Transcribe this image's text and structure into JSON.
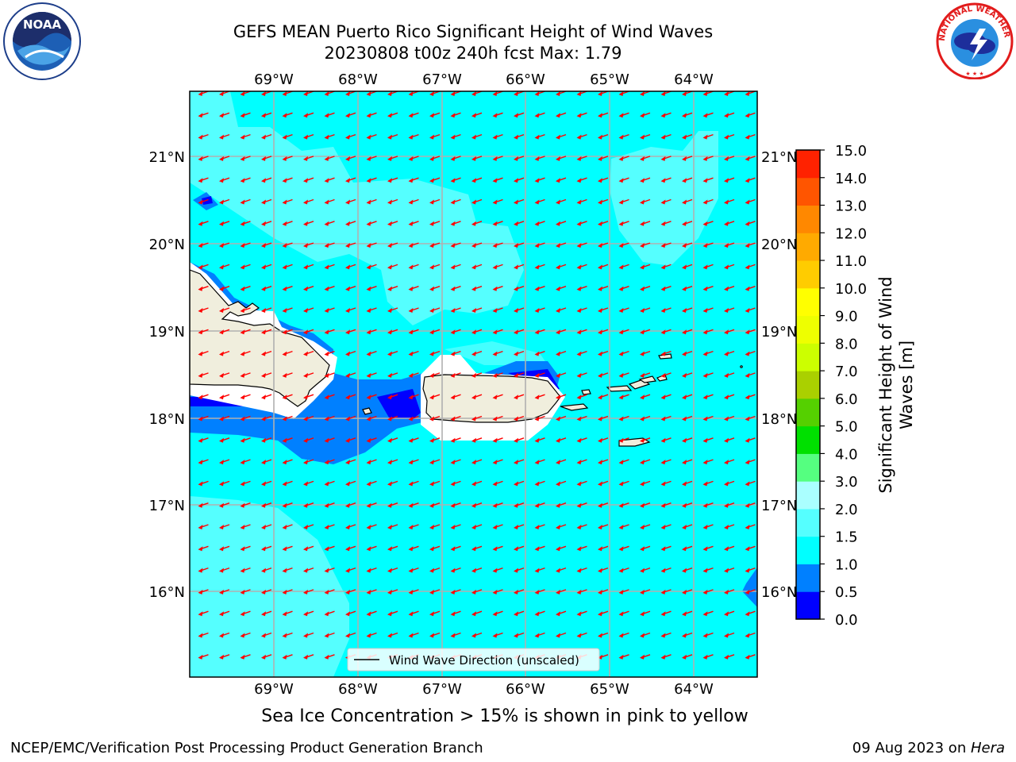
{
  "title_line1": "GEFS MEAN Puerto Rico Significant Height of Wind Waves",
  "title_line2": "20230808 t00z 240h fcst   Max: 1.79",
  "lon_labels": [
    "69°W",
    "68°W",
    "67°W",
    "66°W",
    "65°W",
    "64°W"
  ],
  "lat_labels": [
    "21°N",
    "20°N",
    "19°N",
    "18°N",
    "17°N",
    "16°N"
  ],
  "legend_label": "Wind Wave Direction (unscaled)",
  "colorbar": {
    "label": "Significant Height of Wind Waves [m]",
    "ticks": [
      "0.0",
      "0.5",
      "1.0",
      "1.5",
      "2.0",
      "3.0",
      "4.0",
      "5.0",
      "6.0",
      "7.0",
      "8.0",
      "9.0",
      "10.0",
      "11.0",
      "12.0",
      "13.0",
      "14.0",
      "15.0"
    ],
    "colors": [
      "#0000ff",
      "#0080ff",
      "#00ffff",
      "#55ffff",
      "#aaffff",
      "#55ff80",
      "#00e000",
      "#55d000",
      "#aad000",
      "#ccff00",
      "#eeff00",
      "#ffff00",
      "#ffcc00",
      "#ffaa00",
      "#ff8800",
      "#ff5500",
      "#ff2200"
    ]
  },
  "ice_note": "Sea Ice Concentration > 15% is shown in pink to yellow",
  "footer_left": "NCEP/EMC/Verification Post Processing Product Generation Branch",
  "footer_right_date": "09 Aug 2023 on ",
  "footer_right_host": "Hera",
  "colors": {
    "ocean": "#00ffff",
    "light_cyan": "#55ffff",
    "mid_blue": "#0080ff",
    "deep_blue": "#0000ff",
    "land": "#f0eedd",
    "arrow": "#ff0000",
    "grid": "#b0b0b0"
  },
  "logos": {
    "noaa": "NOAA",
    "nws_arc": "NATIONAL WEATHER SERVICE"
  }
}
